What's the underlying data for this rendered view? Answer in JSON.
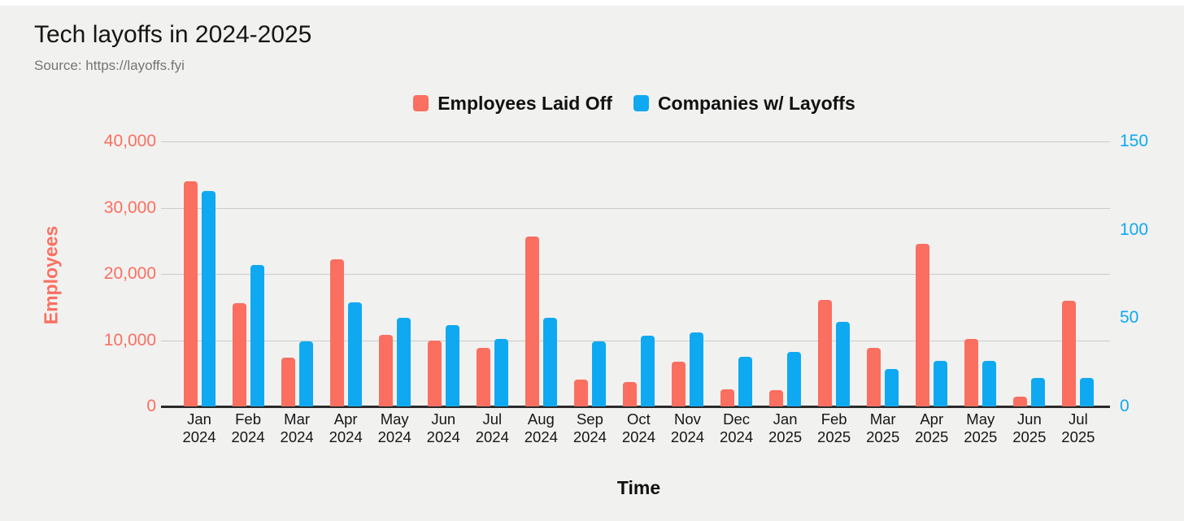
{
  "page": {
    "title": "Tech layoffs in 2024-2025",
    "source": "Source: https://layoffs.fyi"
  },
  "colors": {
    "employees_series": "#FA6F60",
    "companies_series": "#0FA9F2",
    "background": "#F1F1F0",
    "gridline": "#CBCBCB",
    "axis_line": "#2A2A2A",
    "title_text": "#161616",
    "source_text": "#757575"
  },
  "legend": {
    "items": [
      {
        "label": "Employees Laid Off",
        "color": "#FA6F60"
      },
      {
        "label": "Companies w/ Layoffs",
        "color": "#0FA9F2"
      }
    ]
  },
  "chart_data": {
    "type": "bar",
    "title": "Tech layoffs in 2024-2025",
    "subtitle": "Source: https://layoffs.fyi",
    "grid": true,
    "legend_position": "top",
    "categories": [
      "Jan 2024",
      "Feb 2024",
      "Mar 2024",
      "Apr 2024",
      "May 2024",
      "Jun 2024",
      "Jul 2024",
      "Aug 2024",
      "Sep 2024",
      "Oct 2024",
      "Nov 2024",
      "Dec 2024",
      "Jan 2025",
      "Feb 2025",
      "Mar 2025",
      "Apr 2025",
      "May 2025",
      "Jun 2025",
      "Jul 2025"
    ],
    "series": [
      {
        "name": "Employees Laid Off",
        "axis": "left",
        "color": "#FA6F60",
        "values": [
          34000,
          15600,
          7400,
          22200,
          10800,
          10000,
          8900,
          25700,
          4000,
          3700,
          6700,
          2600,
          2400,
          16100,
          8800,
          24500,
          10200,
          1500,
          15900
        ]
      },
      {
        "name": "Companies w/ Layoffs",
        "axis": "right",
        "color": "#0FA9F2",
        "values": [
          122,
          80,
          37,
          59,
          50,
          46,
          38,
          50,
          37,
          40,
          42,
          28,
          31,
          48,
          21,
          26,
          26,
          16,
          16
        ]
      }
    ],
    "left_axis": {
      "title": "Employees",
      "color": "#FA6F60",
      "min": 0,
      "max": 40000,
      "ticks": [
        {
          "label": "40,000",
          "value": 40000
        },
        {
          "label": "30,000",
          "value": 30000
        },
        {
          "label": "20,000",
          "value": 20000
        },
        {
          "label": "10,000",
          "value": 10000
        },
        {
          "label": "0",
          "value": 0
        }
      ]
    },
    "right_axis": {
      "title": "",
      "color": "#0FA9F2",
      "min": 0,
      "max": 150,
      "ticks": [
        {
          "label": "150",
          "value": 150
        },
        {
          "label": "100",
          "value": 100
        },
        {
          "label": "50",
          "value": 50
        },
        {
          "label": "0",
          "value": 0
        }
      ]
    },
    "x_axis": {
      "title": "Time"
    }
  }
}
